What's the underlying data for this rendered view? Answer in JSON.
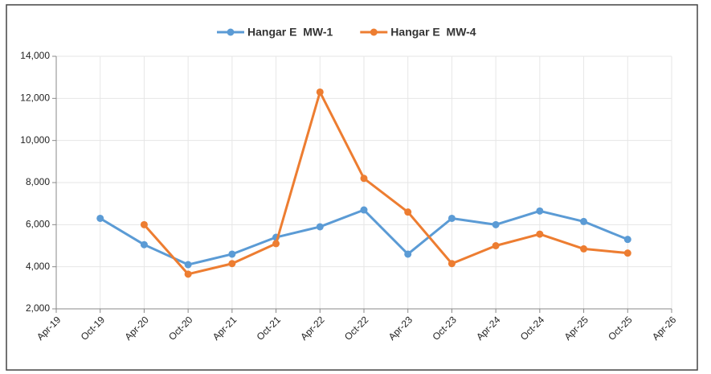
{
  "chart_data": {
    "type": "line",
    "categories": [
      "Apr-19",
      "Oct-19",
      "Apr-20",
      "Oct-20",
      "Apr-21",
      "Oct-21",
      "Apr-22",
      "Oct-22",
      "Apr-23",
      "Oct-23",
      "Apr-24",
      "Oct-24",
      "Apr-25",
      "Oct-25",
      "Apr-26"
    ],
    "series": [
      {
        "name": "Hangar E  MW-1",
        "color": "#5b9bd5",
        "values": [
          null,
          6300,
          5050,
          4100,
          4600,
          5400,
          5900,
          6700,
          4600,
          6300,
          6000,
          6650,
          6150,
          5300,
          null
        ]
      },
      {
        "name": "Hangar E  MW-4",
        "color": "#ed7d31",
        "values": [
          null,
          null,
          6000,
          3650,
          4150,
          5100,
          12300,
          8200,
          6600,
          4150,
          5000,
          5550,
          4850,
          4650,
          null
        ]
      }
    ],
    "ylim": [
      2000,
      14000
    ],
    "yticks": [
      {
        "value": 2000,
        "label": "2,000"
      },
      {
        "value": 4000,
        "label": "4,000"
      },
      {
        "value": 6000,
        "label": "6,000"
      },
      {
        "value": 8000,
        "label": "8,000"
      },
      {
        "value": 10000,
        "label": "10,000"
      },
      {
        "value": 12000,
        "label": "12,000"
      },
      {
        "value": 14000,
        "label": "14,000"
      }
    ],
    "grid": true,
    "legend": "top"
  }
}
